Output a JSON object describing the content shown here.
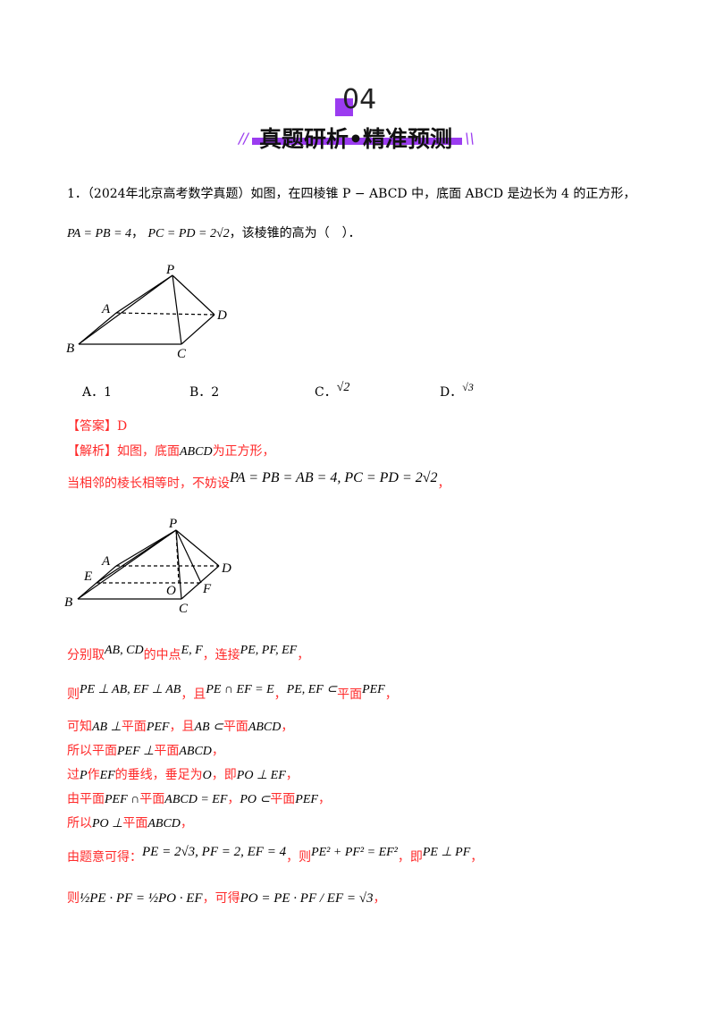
{
  "header": {
    "number": "04",
    "title": "真题研析•精准预测",
    "accent": "#9b3cf0"
  },
  "question": {
    "line1": "1．（2024年北京高考数学真题）如图，在四棱锥 P − ABCD 中，底面 ABCD 是边长为 4 的正方形，",
    "line2_math1": "PA = PB = 4",
    "line2_math2": "PC = PD = 2√2",
    "line2_text": "，该棱锥的高为（　）．",
    "figure_labels": {
      "P": "P",
      "A": "A",
      "B": "B",
      "C": "C",
      "D": "D"
    },
    "options": [
      {
        "label": "A．1"
      },
      {
        "label": "B．2"
      },
      {
        "label": "C．",
        "value": "√2"
      },
      {
        "label": "D．",
        "value": "√3"
      }
    ]
  },
  "answer": {
    "tag": "【答案】",
    "value": "D"
  },
  "analysis": {
    "tag": "【解析】",
    "l1a": "如图，底面",
    "l1m": "ABCD",
    "l1b": "为正方形，",
    "l2a": "当相邻的棱长相等时，不妨设",
    "l2m": "PA = PB = AB = 4, PC = PD = 2√2",
    "figure_labels": {
      "P": "P",
      "A": "A",
      "B": "B",
      "C": "C",
      "D": "D",
      "E": "E",
      "F": "F",
      "O": "O"
    },
    "l3": [
      "分别取",
      "AB, CD",
      "的中点",
      "E, F",
      "，连接",
      "PE, PF, EF",
      "，"
    ],
    "l4": [
      "则",
      "PE ⊥ AB, EF ⊥ AB",
      "，且",
      "PE ∩ EF = E",
      "，",
      "PE, EF ⊂",
      "平面",
      "PEF",
      "，"
    ],
    "l5": [
      "可知",
      "AB ⊥",
      "平面",
      "PEF",
      "，且",
      "AB ⊂",
      "平面",
      "ABCD",
      "，"
    ],
    "l6": [
      "所以平面",
      "PEF ⊥",
      "平面",
      "ABCD",
      "，"
    ],
    "l7": [
      "过",
      "P",
      "作",
      "EF",
      "的垂线，垂足为",
      "O",
      "，即",
      "PO ⊥ EF",
      "，"
    ],
    "l8": [
      "由平面",
      "PEF ∩",
      "平面",
      "ABCD = EF",
      "，",
      "PO ⊂",
      "平面",
      "PEF",
      "，"
    ],
    "l9": [
      "所以",
      "PO ⊥",
      "平面",
      "ABCD",
      "，"
    ],
    "l10": [
      "由题意可得：",
      "PE = 2√3, PF = 2, EF = 4",
      "，则",
      "PE² + PF² = EF²",
      "，即",
      "PE ⊥ PF",
      "，"
    ],
    "l11": [
      "则",
      "½PE · PF = ½PO · EF",
      "，可得",
      "PO = PE · PF / EF = √3",
      "，"
    ]
  }
}
